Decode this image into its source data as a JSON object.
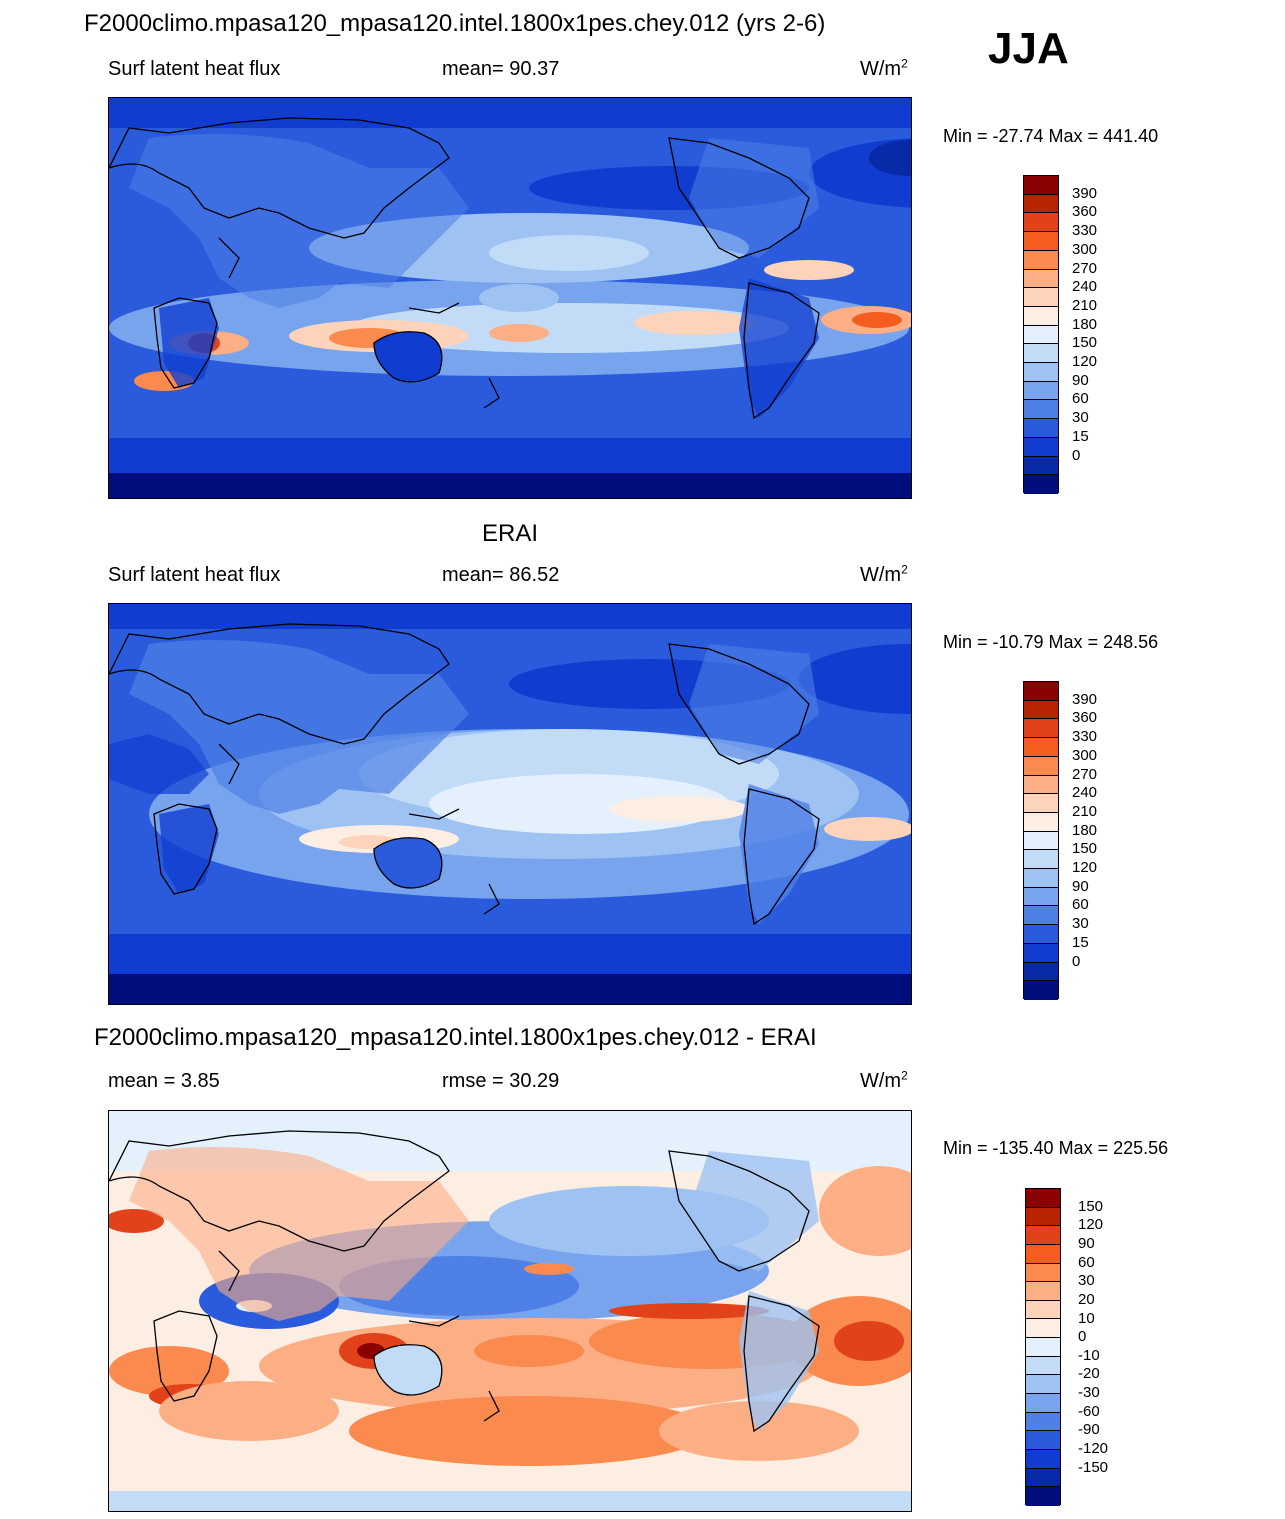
{
  "header": {
    "main_title": "F2000climo.mpasa120_mpasa120.intel.1800x1pes.chey.012 (yrs 2-6)",
    "season": "JJA"
  },
  "panels": [
    {
      "id": "model",
      "title": "",
      "left_label": "Surf latent heat flux",
      "center_label": "mean=  90.37",
      "units": "W/m",
      "units_sup": "2",
      "minmax": "Min = -27.74 Max = 441.40",
      "colorbar": {
        "colors": [
          "#8b0000",
          "#b82300",
          "#e2421a",
          "#f55d1e",
          "#fb8a4e",
          "#fcae85",
          "#fdd4b9",
          "#fdeee3",
          "#e4f0fc",
          "#c2dcf8",
          "#9ec3f3",
          "#78a4ee",
          "#4f80e6",
          "#2a5bdd",
          "#103dd0",
          "#082aa8",
          "#020e7e"
        ],
        "labels": [
          "390",
          "360",
          "330",
          "300",
          "270",
          "240",
          "210",
          "180",
          "150",
          "120",
          "90",
          "60",
          "30",
          "15",
          "0"
        ]
      }
    },
    {
      "id": "obs",
      "title": "ERAI",
      "left_label": "Surf latent heat flux",
      "center_label": "mean=  86.52",
      "units": "W/m",
      "units_sup": "2",
      "minmax": "Min = -10.79 Max = 248.56",
      "colorbar": {
        "colors": [
          "#8b0000",
          "#b82300",
          "#e2421a",
          "#f55d1e",
          "#fb8a4e",
          "#fcae85",
          "#fdd4b9",
          "#fdeee3",
          "#e4f0fc",
          "#c2dcf8",
          "#9ec3f3",
          "#78a4ee",
          "#4f80e6",
          "#2a5bdd",
          "#103dd0",
          "#082aa8",
          "#020e7e"
        ],
        "labels": [
          "390",
          "360",
          "330",
          "300",
          "270",
          "240",
          "210",
          "180",
          "150",
          "120",
          "90",
          "60",
          "30",
          "15",
          "0"
        ]
      }
    },
    {
      "id": "diff",
      "title": "F2000climo.mpasa120_mpasa120.intel.1800x1pes.chey.012 - ERAI",
      "left_label": "mean =   3.85",
      "center_label": "rmse =  30.29",
      "units": "W/m",
      "units_sup": "2",
      "minmax": "Min = -135.40 Max = 225.56",
      "colorbar": {
        "colors": [
          "#8b0000",
          "#b82300",
          "#e2421a",
          "#f55d1e",
          "#fb8a4e",
          "#fcae85",
          "#fdd4b9",
          "#fdeee3",
          "#e4f0fc",
          "#c2dcf8",
          "#9ec3f3",
          "#78a4ee",
          "#4f80e6",
          "#2a5bdd",
          "#103dd0",
          "#082aa8",
          "#020e7e"
        ],
        "labels": [
          "150",
          "120",
          "90",
          "60",
          "30",
          "20",
          "10",
          "0",
          "-10",
          "-20",
          "-30",
          "-60",
          "-90",
          "-120",
          "-150"
        ]
      }
    }
  ]
}
